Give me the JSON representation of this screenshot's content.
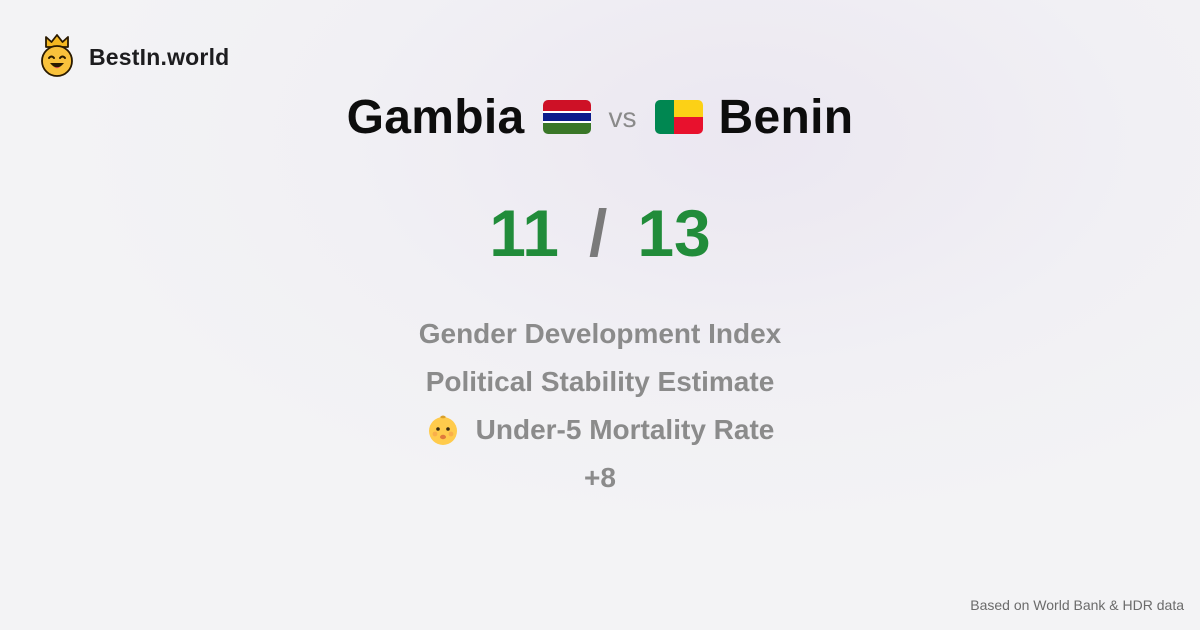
{
  "brand": {
    "name": "BestIn.world",
    "logo_icon": "crowned-smiley-icon"
  },
  "comparison": {
    "left_country": "Gambia",
    "left_flag": "gambia-flag-icon",
    "vs_label": "vs",
    "right_country": "Benin",
    "right_flag": "benin-flag-icon"
  },
  "score": {
    "left": "11",
    "separator": "/",
    "right": "13",
    "color": "#218c3a"
  },
  "metrics": [
    {
      "label": "Gender Development Index"
    },
    {
      "label": "Political Stability Estimate"
    },
    {
      "label": "Under-5 Mortality Rate",
      "icon": "baby-face-icon"
    }
  ],
  "more_label": "+8",
  "footnote": "Based on World Bank & HDR data"
}
